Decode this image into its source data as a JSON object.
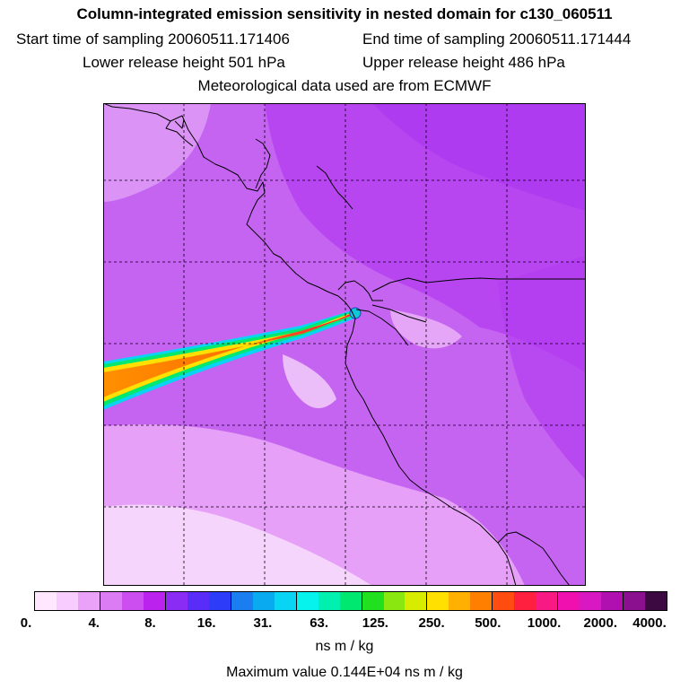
{
  "title": "Column-integrated emission sensitivity in nested domain for c130_060511",
  "start_label": "Start time of sampling 20060511.171406",
  "end_label": "End time of sampling 20060511.171444",
  "lower_label": "Lower release height  501 hPa",
  "upper_label": "Upper release height  486 hPa",
  "met_label": "Meteorological data used are from ECMWF",
  "colorbar": {
    "colors": [
      "#ffe8ff",
      "#f8ccff",
      "#eaa2f8",
      "#dc7cf4",
      "#cc4ef0",
      "#bb22ee",
      "#8a2cf4",
      "#5a2cf8",
      "#2c3cf8",
      "#1a7ef0",
      "#0aaaf0",
      "#0ad4f4",
      "#06f2ec",
      "#00f0b0",
      "#00e870",
      "#20e020",
      "#8ae810",
      "#d8ec00",
      "#ffe000",
      "#ffb000",
      "#ff8000",
      "#ff4c10",
      "#ff2040",
      "#f81a82",
      "#f010b0",
      "#d818c0",
      "#b010b0",
      "#8a1090",
      "#3c0a40"
    ],
    "ticks": [
      "0.",
      "4.",
      "8.",
      "16.",
      "31.",
      "63.",
      "125.",
      "250.",
      "500.",
      "1000.",
      "2000.",
      "4000."
    ],
    "units": "ns m / kg"
  },
  "max_value": "Maximum value  0.144E+04 ns m / kg",
  "map": {
    "background": "#c664f2",
    "plume_colors": [
      "#2c3cf8",
      "#0ad4f4",
      "#00e870",
      "#ffe000",
      "#ff8000",
      "#ff2040"
    ]
  }
}
